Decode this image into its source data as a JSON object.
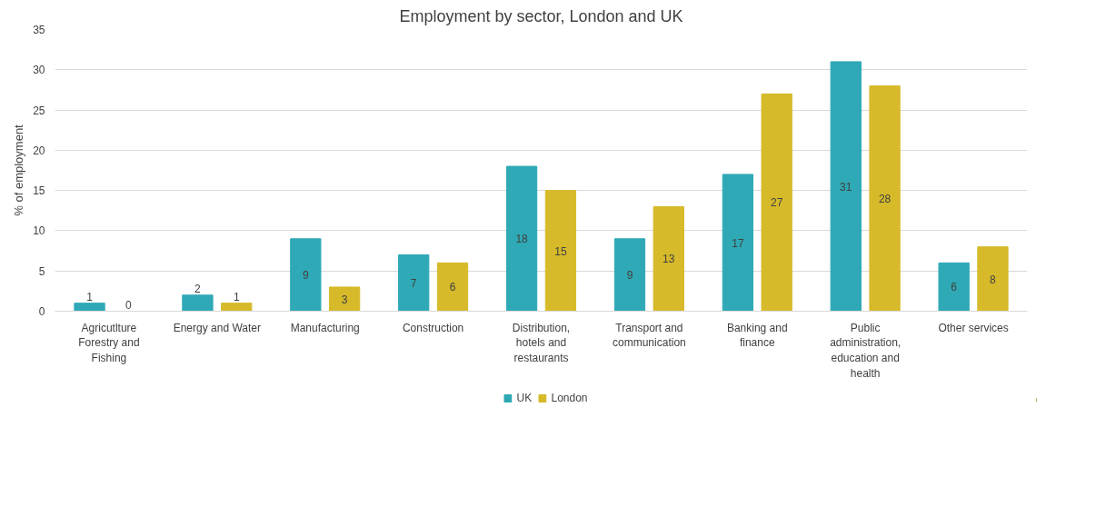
{
  "chart_data": {
    "type": "bar",
    "title": "Employment by sector, London and UK",
    "ylabel": "% of employment",
    "categories": [
      "Agricutlture Forestry and Fishing",
      "Energy and Water",
      "Manufacturing",
      "Construction",
      "Distribution, hotels and restaurants",
      "Transport and communication",
      "Banking and finance",
      "Public administration, education and health",
      "Other services"
    ],
    "series": [
      {
        "name": "UK",
        "color": "#2fa9b5",
        "values": [
          1,
          2,
          9,
          7,
          18,
          9,
          17,
          31,
          6
        ]
      },
      {
        "name": "London",
        "color": "#d6ba2a",
        "values": [
          0,
          1,
          3,
          6,
          15,
          13,
          27,
          28,
          8
        ]
      }
    ],
    "ylim": [
      0,
      35
    ],
    "yticks": [
      0,
      5,
      10,
      15,
      20,
      25,
      30,
      35
    ],
    "grid": "y",
    "legend": "bottom",
    "data_labels": true
  }
}
